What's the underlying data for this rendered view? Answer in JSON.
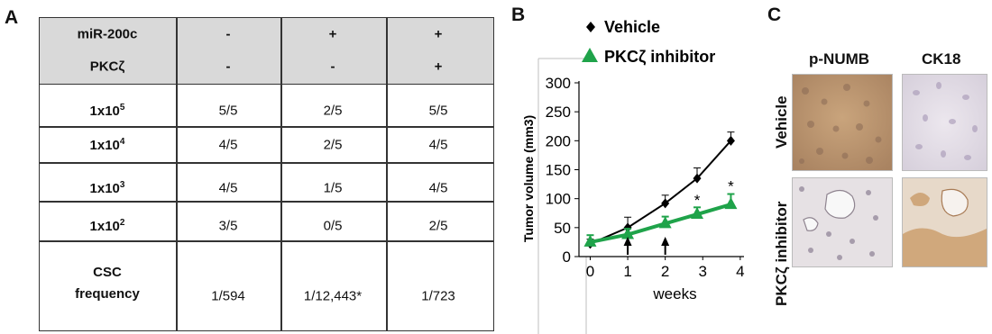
{
  "panels": {
    "a": "A",
    "b": "B",
    "c": "C"
  },
  "table": {
    "header_rows": [
      {
        "label": "miR-200c",
        "values": [
          "-",
          "+",
          "+"
        ]
      },
      {
        "label": "PKCζ",
        "values": [
          "-",
          "-",
          "+"
        ]
      }
    ],
    "rows": [
      {
        "label_base": "1x10",
        "label_exp": "5",
        "values": [
          "5/5",
          "2/5",
          "5/5"
        ]
      },
      {
        "label_base": "1x10",
        "label_exp": "4",
        "values": [
          "4/5",
          "2/5",
          "4/5"
        ]
      },
      {
        "label_base": "1x10",
        "label_exp": "3",
        "values": [
          "4/5",
          "1/5",
          "4/5"
        ]
      },
      {
        "label_base": "1x10",
        "label_exp": "2",
        "values": [
          "3/5",
          "0/5",
          "2/5"
        ]
      }
    ],
    "freq_label_line1": "CSC",
    "freq_label_line2": "frequency",
    "freq_values": [
      "1/594",
      "1/12,443*",
      "1/723"
    ]
  },
  "chart_data": {
    "type": "line",
    "xlabel": "weeks",
    "ylabel": "Tumor volume (mm3)",
    "xlim": [
      -0.3,
      4.1
    ],
    "ylim": [
      0,
      300
    ],
    "x_ticks": [
      0,
      1,
      2,
      3,
      4
    ],
    "y_ticks": [
      0,
      50,
      100,
      150,
      200,
      250,
      300
    ],
    "legend_position": "top",
    "series": [
      {
        "name": "Vehicle",
        "marker": "diamond",
        "color": "#000000",
        "x": [
          0,
          1,
          2,
          2.85,
          3.75
        ],
        "y": [
          22,
          50,
          92,
          135,
          200
        ],
        "err": [
          8,
          18,
          14,
          18,
          15
        ]
      },
      {
        "name": "PKCζ inhibitor",
        "marker": "triangle",
        "color": "#1fa34a",
        "x": [
          0,
          1,
          2,
          2.85,
          3.75
        ],
        "y": [
          25,
          38,
          57,
          73,
          90
        ],
        "err": [
          12,
          10,
          12,
          12,
          18
        ]
      }
    ],
    "significance": [
      {
        "x": 2.85,
        "y": 104,
        "label": "*"
      },
      {
        "x": 3.75,
        "y": 128,
        "label": "*"
      }
    ],
    "dosing_arrows_weeks": [
      1,
      2
    ]
  },
  "panel_c": {
    "columns": [
      "p-NUMB",
      "CK18"
    ],
    "rows": [
      "Vehicle",
      "PKCζ inhibitor"
    ]
  }
}
